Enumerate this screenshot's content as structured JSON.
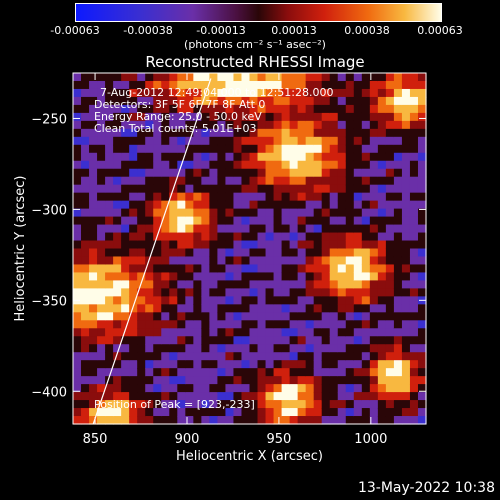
{
  "colorbar": {
    "ticks": [
      "-0.00063",
      "-0.00038",
      "-0.00013",
      "0.00013",
      "0.00038",
      "0.00063"
    ],
    "unit": "(photons cm⁻² s⁻¹ asec⁻²)"
  },
  "chart_data": {
    "type": "heatmap",
    "title": "Reconstructed RHESSI Image",
    "xlabel": "Heliocentric X (arcsec)",
    "ylabel": "Heliocentric Y (arcsec)",
    "xlim": [
      838,
      1030
    ],
    "ylim": [
      -418,
      -225
    ],
    "xticks": [
      850,
      900,
      950,
      1000
    ],
    "yticks": [
      -400,
      -350,
      -300,
      -250
    ],
    "colorscale": [
      "#0d1aff",
      "#3b2fd0",
      "#6a2fa8",
      "#2a0608",
      "#8a0d0d",
      "#d0200d",
      "#f06a10",
      "#f8b840",
      "#fffde8"
    ],
    "value_range": [
      -0.00063,
      0.00063
    ],
    "limb_line": [
      [
        849,
        -418
      ],
      [
        913,
        -228
      ]
    ],
    "peak": [
      923,
      -233
    ],
    "annotations": {
      "time_range": "7-Aug-2012 12:49:04.000 to 12:51:28.000",
      "detectors": "Detectors: 3F 5F 6F 7F 8F  Att 0",
      "energy": "Energy Range: 25.0 - 50.0 keV",
      "clean": "Clean    Total counts: 5.01E+03",
      "peak_label": "Position of Peak = [923,-233]"
    }
  },
  "footer": {
    "timestamp": "13-May-2022 10:38"
  }
}
